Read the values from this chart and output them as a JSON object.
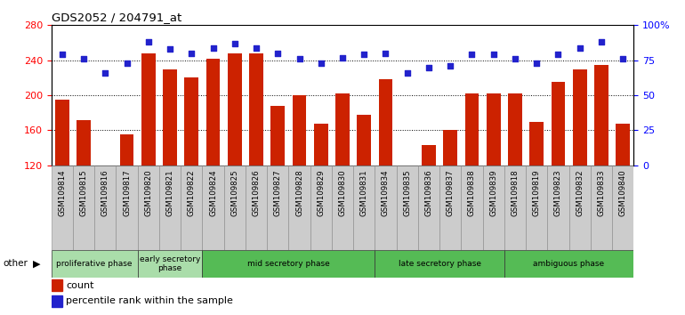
{
  "title": "GDS2052 / 204791_at",
  "samples": [
    "GSM109814",
    "GSM109815",
    "GSM109816",
    "GSM109817",
    "GSM109820",
    "GSM109821",
    "GSM109822",
    "GSM109824",
    "GSM109825",
    "GSM109826",
    "GSM109827",
    "GSM109828",
    "GSM109829",
    "GSM109830",
    "GSM109831",
    "GSM109834",
    "GSM109835",
    "GSM109836",
    "GSM109837",
    "GSM109838",
    "GSM109839",
    "GSM109818",
    "GSM109819",
    "GSM109823",
    "GSM109832",
    "GSM109833",
    "GSM109840"
  ],
  "counts": [
    195,
    172,
    120,
    155,
    248,
    230,
    220,
    242,
    248,
    248,
    188,
    200,
    168,
    202,
    178,
    218,
    120,
    143,
    160,
    202,
    202,
    202,
    170,
    215,
    230,
    235,
    168
  ],
  "percentile_ranks": [
    79,
    76,
    66,
    73,
    88,
    83,
    80,
    84,
    87,
    84,
    80,
    76,
    73,
    77,
    79,
    80,
    66,
    70,
    71,
    79,
    79,
    76,
    73,
    79,
    84,
    88,
    76
  ],
  "ylim_left": [
    120,
    280
  ],
  "ylim_right": [
    0,
    100
  ],
  "yticks_left": [
    120,
    160,
    200,
    240,
    280
  ],
  "yticks_right": [
    0,
    25,
    50,
    75,
    100
  ],
  "ytick_labels_right": [
    "0",
    "25",
    "50",
    "75",
    "100%"
  ],
  "bar_color": "#cc2200",
  "dot_color": "#2222cc",
  "plot_bg_color": "#ffffff",
  "fig_bg_color": "#ffffff",
  "bar_bottom": 120,
  "legend_count_label": "count",
  "legend_pct_label": "percentile rank within the sample",
  "other_label": "other",
  "phase_light_color": "#aaddaa",
  "phase_mid_color": "#55bb55",
  "phases": [
    {
      "label": "proliferative phase",
      "start": 0,
      "end": 4,
      "color": "#aaddaa"
    },
    {
      "label": "early secretory\nphase",
      "start": 4,
      "end": 7,
      "color": "#aaddaa"
    },
    {
      "label": "mid secretory phase",
      "start": 7,
      "end": 15,
      "color": "#55bb55"
    },
    {
      "label": "late secretory phase",
      "start": 15,
      "end": 21,
      "color": "#55bb55"
    },
    {
      "label": "ambiguous phase",
      "start": 21,
      "end": 27,
      "color": "#55bb55"
    }
  ],
  "grid_lines": [
    160,
    200,
    240
  ],
  "xtick_bg_color": "#cccccc"
}
